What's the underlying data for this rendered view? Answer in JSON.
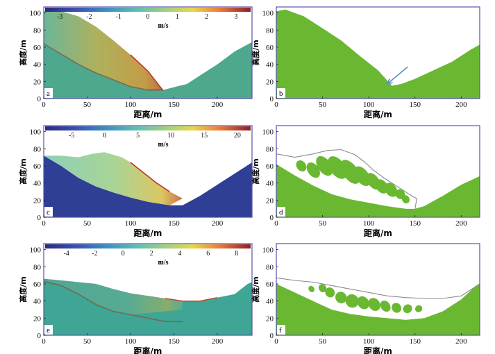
{
  "figure": {
    "panels": [
      {
        "id": "a",
        "kind": "velocity",
        "colorbar": {
          "ticks": [
            "-3",
            "-2",
            "-1",
            "0",
            "1",
            "2",
            "3"
          ],
          "min": -3.5,
          "max": 3.5,
          "unit": "m/s"
        },
        "xlabel": "距离/m",
        "ylabel": "高度/m",
        "xticks": [
          "0",
          "50",
          "100",
          "150",
          "200"
        ],
        "yticks": [
          "0",
          "20",
          "40",
          "60",
          "80",
          "100"
        ],
        "xlim": [
          0,
          240
        ],
        "ylim": [
          0,
          107
        ],
        "ground": [
          [
            0,
            102
          ],
          [
            20,
            102
          ],
          [
            40,
            96
          ],
          [
            60,
            84
          ],
          [
            80,
            68
          ],
          [
            100,
            51
          ],
          [
            120,
            32
          ],
          [
            137,
            10
          ],
          [
            145,
            12
          ],
          [
            165,
            17
          ],
          [
            180,
            27
          ],
          [
            200,
            40
          ],
          [
            220,
            55
          ],
          [
            240,
            66
          ]
        ],
        "body": [
          [
            0,
            102
          ],
          [
            20,
            102
          ],
          [
            40,
            96
          ],
          [
            60,
            84
          ],
          [
            80,
            68
          ],
          [
            100,
            51
          ],
          [
            120,
            32
          ],
          [
            137,
            10
          ],
          [
            120,
            10
          ],
          [
            100,
            14
          ],
          [
            80,
            22
          ],
          [
            60,
            30
          ],
          [
            40,
            40
          ],
          [
            20,
            52
          ],
          [
            0,
            64
          ]
        ],
        "slip": [
          [
            0,
            64
          ],
          [
            20,
            52
          ],
          [
            40,
            40
          ],
          [
            60,
            30
          ],
          [
            80,
            22
          ],
          [
            100,
            14
          ],
          [
            120,
            10
          ],
          [
            137,
            10
          ]
        ],
        "arrow": null
      },
      {
        "id": "b",
        "kind": "material",
        "colorbar": null,
        "xlabel": "距离/m",
        "ylabel": "高度/m",
        "xticks": [
          "0",
          "50",
          "100",
          "150",
          "200"
        ],
        "yticks": [
          "0",
          "20",
          "40",
          "60",
          "80",
          "100"
        ],
        "xlim": [
          0,
          220
        ],
        "ylim": [
          0,
          107
        ],
        "ground": [
          [
            0,
            102
          ],
          [
            10,
            104
          ],
          [
            30,
            96
          ],
          [
            50,
            82
          ],
          [
            70,
            68
          ],
          [
            90,
            50
          ],
          [
            110,
            33
          ],
          [
            125,
            15
          ],
          [
            135,
            17
          ],
          [
            150,
            23
          ],
          [
            170,
            33
          ],
          [
            190,
            43
          ],
          [
            210,
            57
          ],
          [
            220,
            63
          ]
        ],
        "outline": null,
        "blocks": [],
        "arrow": {
          "from": [
            142,
            37
          ],
          "to": [
            120,
            17
          ]
        }
      },
      {
        "id": "c",
        "kind": "velocity",
        "colorbar": {
          "ticks": [
            "-5",
            "0",
            "5",
            "10",
            "15",
            "20"
          ],
          "min": -9,
          "max": 22,
          "unit": "m/s"
        },
        "xlabel": "距离/m",
        "ylabel": "高度/m",
        "xticks": [
          "0",
          "50",
          "100",
          "150",
          "200"
        ],
        "yticks": [
          "0",
          "20",
          "40",
          "60",
          "80",
          "100"
        ],
        "xlim": [
          0,
          240
        ],
        "ylim": [
          0,
          107
        ],
        "ground": [
          [
            0,
            72
          ],
          [
            20,
            60
          ],
          [
            40,
            46
          ],
          [
            60,
            36
          ],
          [
            80,
            29
          ],
          [
            100,
            23
          ],
          [
            120,
            18
          ],
          [
            145,
            14
          ],
          [
            160,
            14
          ],
          [
            180,
            25
          ],
          [
            200,
            38
          ],
          [
            220,
            51
          ],
          [
            240,
            64
          ]
        ],
        "body": [
          [
            0,
            72
          ],
          [
            20,
            72
          ],
          [
            40,
            70
          ],
          [
            55,
            74
          ],
          [
            70,
            76
          ],
          [
            90,
            70
          ],
          [
            100,
            64
          ],
          [
            110,
            56
          ],
          [
            120,
            48
          ],
          [
            130,
            40
          ],
          [
            145,
            30
          ],
          [
            160,
            22
          ],
          [
            145,
            14
          ],
          [
            120,
            18
          ],
          [
            100,
            23
          ],
          [
            80,
            29
          ],
          [
            60,
            36
          ],
          [
            40,
            46
          ],
          [
            20,
            60
          ]
        ],
        "slip": null,
        "arrow": null
      },
      {
        "id": "d",
        "kind": "material",
        "colorbar": null,
        "xlabel": "距离/m",
        "ylabel": "高度/m",
        "xticks": [
          "0",
          "50",
          "100",
          "150",
          "200"
        ],
        "yticks": [
          "0",
          "20",
          "40",
          "60",
          "80",
          "100"
        ],
        "xlim": [
          0,
          220
        ],
        "ylim": [
          0,
          107
        ],
        "ground": [
          [
            0,
            62
          ],
          [
            20,
            49
          ],
          [
            40,
            37
          ],
          [
            60,
            27
          ],
          [
            80,
            21
          ],
          [
            100,
            17
          ],
          [
            120,
            13
          ],
          [
            140,
            10
          ],
          [
            150,
            10
          ],
          [
            160,
            13
          ],
          [
            180,
            25
          ],
          [
            200,
            38
          ],
          [
            220,
            48
          ]
        ],
        "outline": [
          [
            0,
            74
          ],
          [
            20,
            70
          ],
          [
            40,
            74
          ],
          [
            55,
            78
          ],
          [
            70,
            79
          ],
          [
            85,
            73
          ],
          [
            95,
            65
          ],
          [
            105,
            55
          ],
          [
            115,
            47
          ],
          [
            125,
            40
          ],
          [
            135,
            33
          ],
          [
            148,
            24
          ],
          [
            152,
            22
          ],
          [
            150,
            10
          ]
        ],
        "blocks": [
          {
            "cx": 27,
            "cy": 60,
            "rx": 5,
            "ry": 7
          },
          {
            "cx": 40,
            "cy": 55,
            "rx": 6,
            "ry": 10
          },
          {
            "cx": 52,
            "cy": 60,
            "rx": 7,
            "ry": 13
          },
          {
            "cx": 66,
            "cy": 58,
            "rx": 8,
            "ry": 15
          },
          {
            "cx": 80,
            "cy": 53,
            "rx": 8,
            "ry": 16
          },
          {
            "cx": 93,
            "cy": 48,
            "rx": 7,
            "ry": 13
          },
          {
            "cx": 105,
            "cy": 42,
            "rx": 6,
            "ry": 11
          },
          {
            "cx": 114,
            "cy": 36,
            "rx": 6,
            "ry": 9
          },
          {
            "cx": 124,
            "cy": 32,
            "rx": 6,
            "ry": 9
          },
          {
            "cx": 134,
            "cy": 27,
            "rx": 5,
            "ry": 6
          },
          {
            "cx": 140,
            "cy": 21,
            "rx": 4,
            "ry": 5
          }
        ],
        "arrow": null
      },
      {
        "id": "e",
        "kind": "velocity",
        "colorbar": {
          "ticks": [
            "-4",
            "-2",
            "0",
            "2",
            "4",
            "6",
            "8"
          ],
          "min": -5.5,
          "max": 9,
          "unit": "m/s"
        },
        "xlabel": "距离/m",
        "ylabel": "高度/m",
        "xticks": [
          "0",
          "50",
          "100",
          "150",
          "200"
        ],
        "yticks": [
          "0",
          "20",
          "40",
          "60",
          "80",
          "100"
        ],
        "xlim": [
          0,
          240
        ],
        "ylim": [
          0,
          107
        ],
        "ground": [
          [
            0,
            66
          ],
          [
            20,
            64
          ],
          [
            40,
            62
          ],
          [
            60,
            60
          ],
          [
            80,
            54
          ],
          [
            100,
            49
          ],
          [
            120,
            46
          ],
          [
            140,
            43
          ],
          [
            160,
            40
          ],
          [
            180,
            40
          ],
          [
            200,
            44
          ],
          [
            220,
            48
          ],
          [
            235,
            60
          ],
          [
            240,
            62
          ]
        ],
        "body": [
          [
            0,
            66
          ],
          [
            20,
            64
          ],
          [
            40,
            62
          ],
          [
            60,
            60
          ],
          [
            80,
            54
          ],
          [
            100,
            49
          ],
          [
            120,
            46
          ],
          [
            140,
            43
          ],
          [
            160,
            40
          ],
          [
            160,
            30
          ],
          [
            140,
            28
          ],
          [
            120,
            26
          ],
          [
            100,
            24
          ],
          [
            80,
            28
          ],
          [
            60,
            36
          ],
          [
            40,
            48
          ],
          [
            20,
            58
          ],
          [
            0,
            63
          ]
        ],
        "slip": [
          [
            0,
            63
          ],
          [
            20,
            58
          ],
          [
            40,
            48
          ],
          [
            60,
            36
          ],
          [
            80,
            28
          ],
          [
            100,
            24
          ],
          [
            120,
            20
          ],
          [
            140,
            16
          ],
          [
            160,
            16
          ]
        ],
        "arrow": null
      },
      {
        "id": "f",
        "kind": "material",
        "colorbar": null,
        "xlabel": "距离/m",
        "ylabel": "高度/m",
        "xticks": [
          "0",
          "50",
          "100",
          "150",
          "200"
        ],
        "yticks": [
          "0",
          "20",
          "40",
          "60",
          "80",
          "100"
        ],
        "xlim": [
          0,
          220
        ],
        "ylim": [
          0,
          107
        ],
        "ground": [
          [
            0,
            60
          ],
          [
            20,
            50
          ],
          [
            40,
            40
          ],
          [
            60,
            30
          ],
          [
            80,
            25
          ],
          [
            100,
            22
          ],
          [
            120,
            20
          ],
          [
            140,
            18
          ],
          [
            160,
            20
          ],
          [
            180,
            28
          ],
          [
            200,
            42
          ],
          [
            220,
            62
          ]
        ],
        "outline": [
          [
            0,
            67
          ],
          [
            20,
            64
          ],
          [
            40,
            62
          ],
          [
            60,
            58
          ],
          [
            80,
            54
          ],
          [
            100,
            50
          ],
          [
            120,
            46
          ],
          [
            140,
            44
          ],
          [
            160,
            43
          ],
          [
            180,
            43
          ],
          [
            200,
            46
          ],
          [
            220,
            60
          ]
        ],
        "blocks": [
          {
            "cx": 38,
            "cy": 54,
            "rx": 3,
            "ry": 4
          },
          {
            "cx": 50,
            "cy": 55,
            "rx": 4,
            "ry": 5
          },
          {
            "cx": 58,
            "cy": 50,
            "rx": 5,
            "ry": 6
          },
          {
            "cx": 70,
            "cy": 44,
            "rx": 6,
            "ry": 7
          },
          {
            "cx": 82,
            "cy": 40,
            "rx": 7,
            "ry": 8
          },
          {
            "cx": 94,
            "cy": 38,
            "rx": 6,
            "ry": 8
          },
          {
            "cx": 106,
            "cy": 36,
            "rx": 6,
            "ry": 8
          },
          {
            "cx": 118,
            "cy": 34,
            "rx": 5,
            "ry": 7
          },
          {
            "cx": 130,
            "cy": 32,
            "rx": 5,
            "ry": 6
          },
          {
            "cx": 142,
            "cy": 31,
            "rx": 5,
            "ry": 5
          },
          {
            "cx": 154,
            "cy": 31,
            "rx": 4,
            "ry": 4
          }
        ],
        "arrow": null
      }
    ],
    "colors": {
      "frame": "#5a4fb0",
      "ground_material": "#6ab832",
      "ground_a": "#4ea88e",
      "ground_c": "#2f3f95",
      "ground_e": "#3fa594",
      "body_warm": "#c8a24a",
      "body_cool": "#6fb8a0",
      "slip_line": "#7a5f4a",
      "outline_line": "#8a8a8a",
      "arrow": "#5b8fc9"
    }
  }
}
